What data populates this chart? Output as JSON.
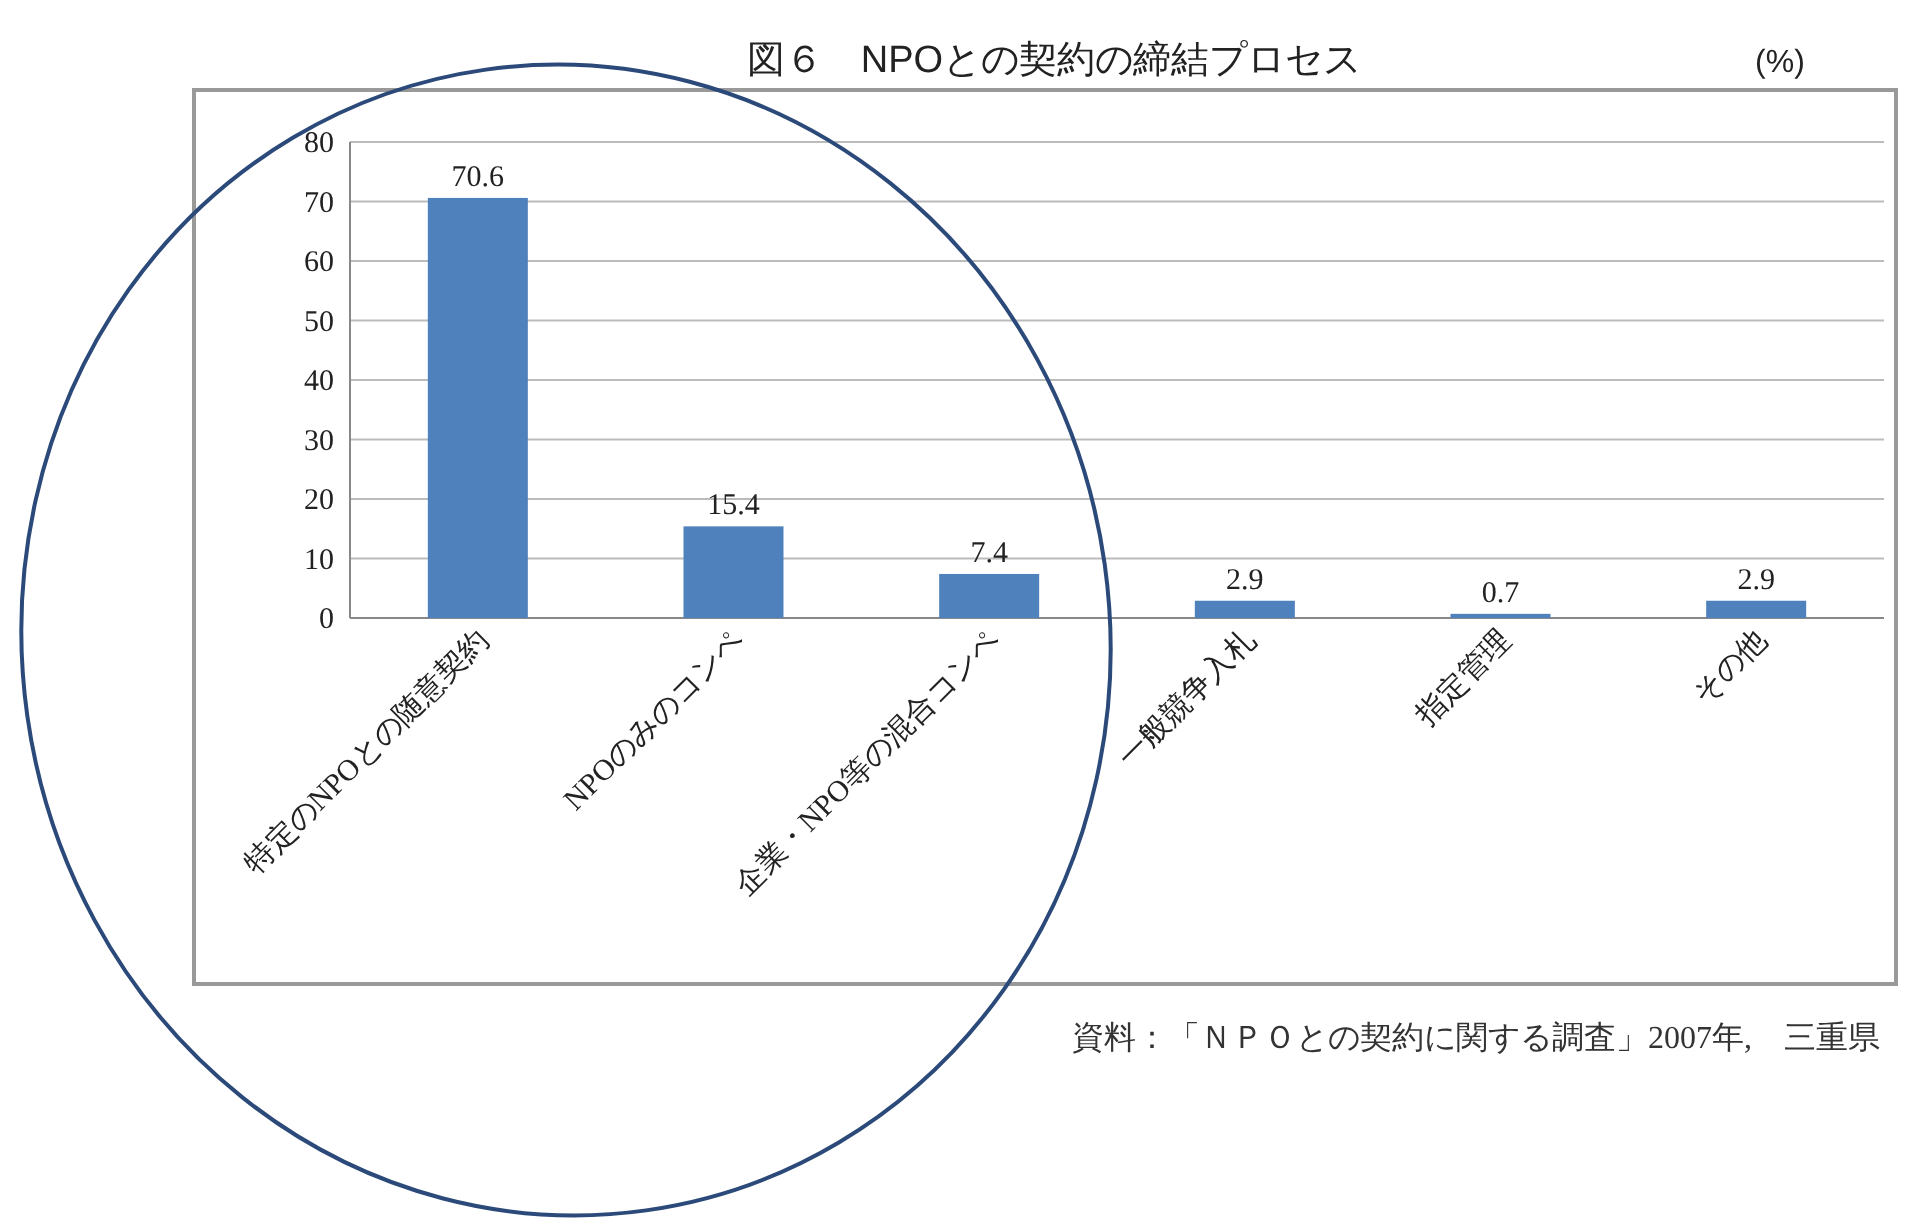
{
  "chart_data": {
    "type": "bar",
    "title": "図６　NPOとの契約の締結プロセス",
    "ylabel": "(%)",
    "categories": [
      "特定のNPOとの随意契約",
      "NPOのみのコンペ",
      "企業・NPO等の混合コンペ",
      "一般競争入札",
      "指定管理",
      "その他"
    ],
    "values": [
      70.6,
      15.4,
      7.4,
      2.9,
      0.7,
      2.9
    ],
    "color": "#4f81bd",
    "ylim": [
      0,
      80
    ],
    "yticks": [
      0,
      10,
      20,
      30,
      40,
      50,
      60,
      70,
      80
    ],
    "grid": "y",
    "data_labels": true,
    "annotations": [
      "資料：「ＮＰＯとの契約に関する調査」2007年,　三重県"
    ]
  }
}
